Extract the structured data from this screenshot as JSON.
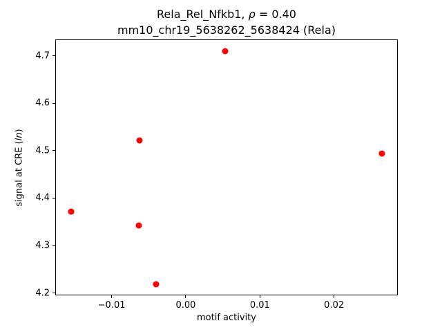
{
  "chart_data": {
    "type": "scatter",
    "title_line1": {
      "prefix": "Rela_Rel_Nfkb1, ",
      "rho": "ρ",
      "suffix": " = 0.40"
    },
    "title_line2": "mm10_chr19_5638262_5638424 (Rela)",
    "xlabel": "motif activity",
    "ylabel_prefix": "signal at CRE (",
    "ylabel_italic": "ln",
    "ylabel_suffix": ")",
    "marker_color": "#ff0000",
    "points": [
      {
        "x": -0.0155,
        "y": 4.372
      },
      {
        "x": -0.0063,
        "y": 4.342
      },
      {
        "x": -0.0062,
        "y": 4.522
      },
      {
        "x": -0.004,
        "y": 4.219
      },
      {
        "x": 0.0053,
        "y": 4.71
      },
      {
        "x": 0.0265,
        "y": 4.494
      }
    ],
    "xlim": [
      -0.0176,
      0.0286
    ],
    "ylim": [
      4.195,
      4.7345
    ],
    "xticks": [
      -0.01,
      0.0,
      0.01,
      0.02
    ],
    "xtick_labels": [
      "−0.01",
      "0.00",
      "0.01",
      "0.02"
    ],
    "yticks": [
      4.2,
      4.3,
      4.4,
      4.5,
      4.6,
      4.7
    ],
    "ytick_labels": [
      "4.2",
      "4.3",
      "4.4",
      "4.5",
      "4.6",
      "4.7"
    ],
    "grid": false,
    "legend": null
  }
}
